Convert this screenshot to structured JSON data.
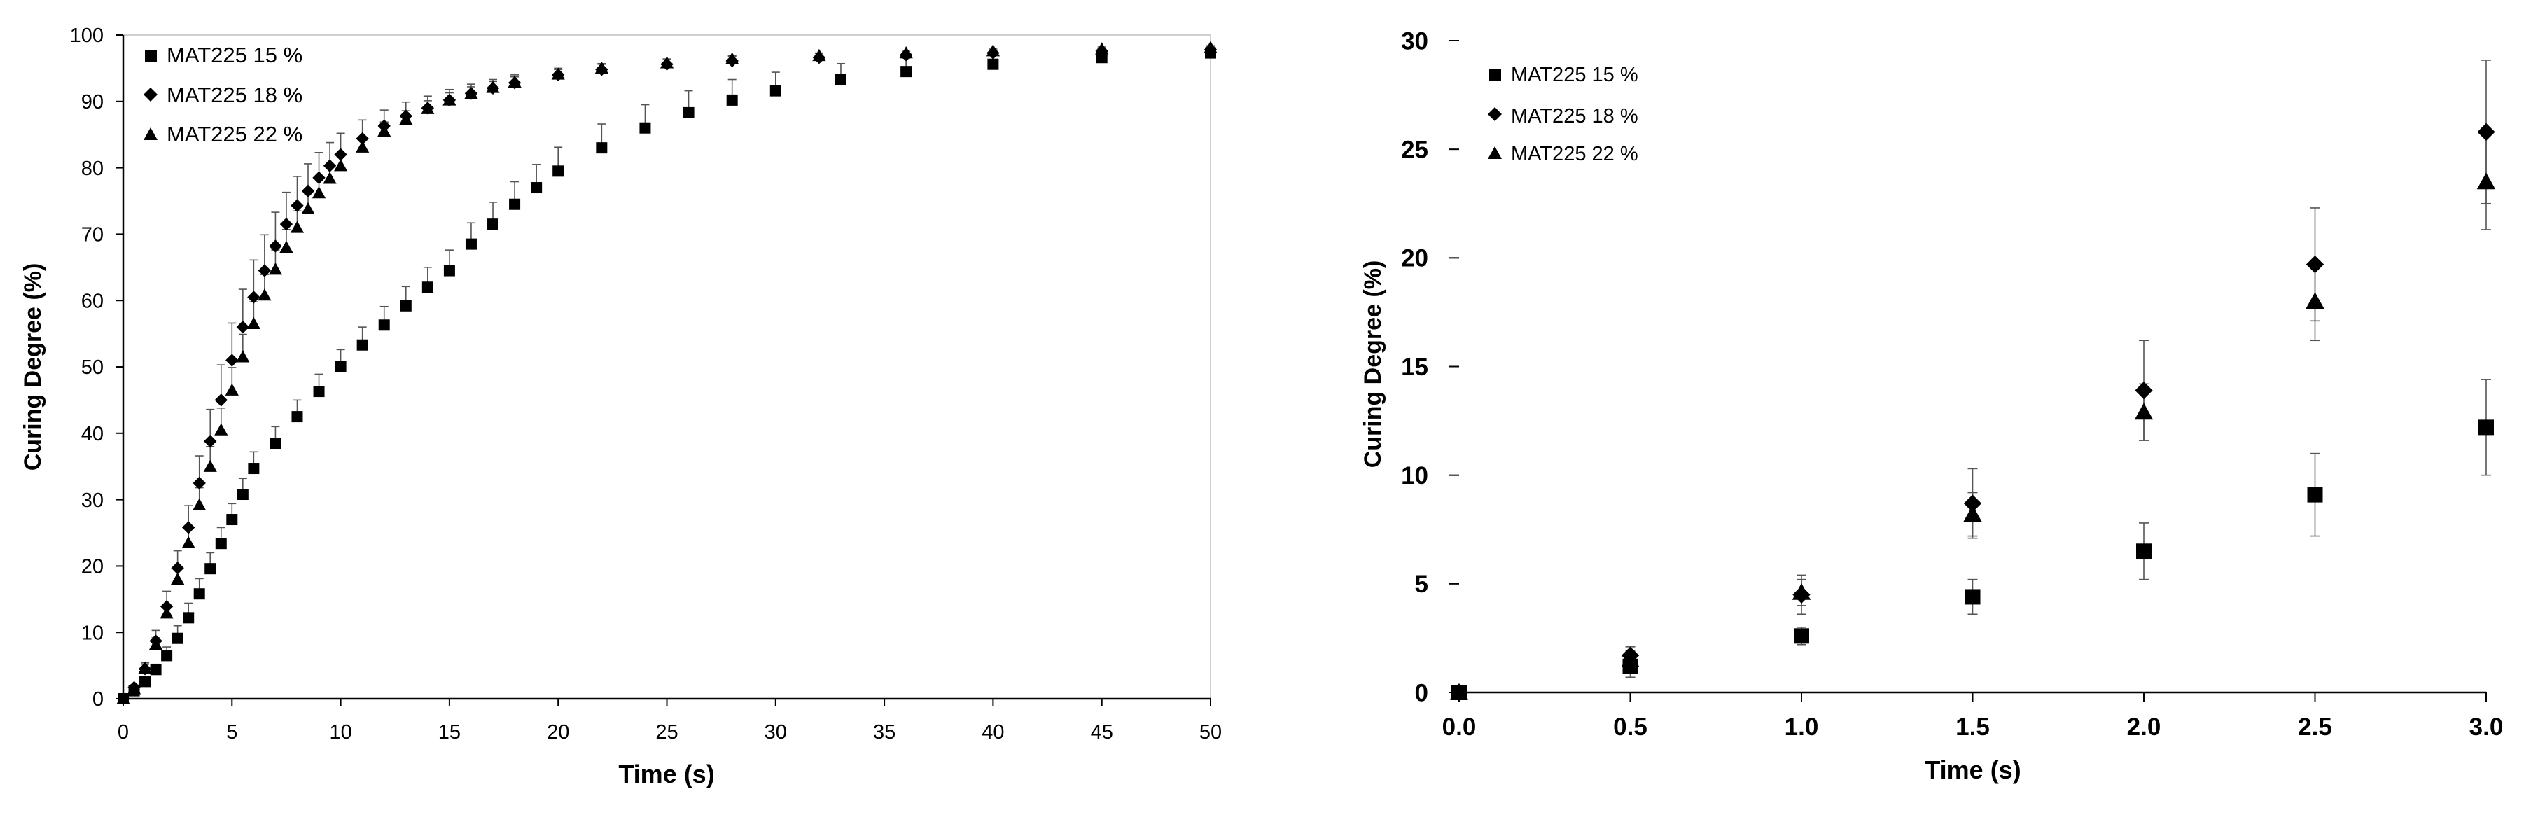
{
  "chart_data": [
    {
      "type": "scatter",
      "xlabel": "Time (s)",
      "ylabel": "Curing Degree (%)",
      "xlim": [
        0,
        50
      ],
      "ylim": [
        0,
        100
      ],
      "xticks": [
        "0",
        "5",
        "10",
        "15",
        "20",
        "25",
        "30",
        "35",
        "40",
        "45",
        "50"
      ],
      "yticks": [
        "0",
        "10",
        "20",
        "30",
        "40",
        "50",
        "60",
        "70",
        "80",
        "90",
        "100"
      ],
      "legend_position": "top-left",
      "grid": false,
      "error_bars": true,
      "series": [
        {
          "name": "MAT225 15 %",
          "marker": "square",
          "x": [
            0,
            0.5,
            1,
            1.5,
            2,
            2.5,
            3,
            3.5,
            4,
            4.5,
            5,
            5.5,
            6,
            7,
            8,
            9,
            10,
            11,
            12,
            13,
            14,
            15,
            16,
            17,
            18,
            19,
            20,
            22,
            24,
            26,
            28,
            30,
            33,
            36,
            40,
            45,
            50
          ],
          "y": [
            0,
            1.2,
            2.6,
            4.4,
            6.5,
            9.1,
            12.2,
            15.8,
            19.6,
            23.4,
            27,
            30.8,
            34.7,
            38.5,
            42.5,
            46.3,
            50,
            53.3,
            56.3,
            59.2,
            62,
            64.5,
            68.5,
            71.5,
            74.5,
            77,
            79.5,
            83,
            86,
            88.3,
            90.2,
            91.6,
            93.3,
            94.5,
            95.6,
            96.6,
            97.3
          ],
          "error": [
            0,
            0.5,
            0.4,
            0.8,
            1.3,
            1.9,
            2.2,
            2.3,
            2.4,
            2.4,
            2.4,
            2.4,
            2.5,
            2.5,
            2.5,
            2.6,
            2.6,
            2.7,
            2.8,
            2.9,
            3,
            3.1,
            3.2,
            3.3,
            3.4,
            3.5,
            3.6,
            3.6,
            3.5,
            3.3,
            3.1,
            2.8,
            2.4,
            2,
            1.6,
            1.2,
            0.9
          ]
        },
        {
          "name": "MAT225 18 %",
          "marker": "diamond",
          "x": [
            0,
            0.5,
            1,
            1.5,
            2,
            2.5,
            3,
            3.5,
            4,
            4.5,
            5,
            5.5,
            6,
            6.5,
            7,
            7.5,
            8,
            8.5,
            9,
            9.5,
            10,
            11,
            12,
            13,
            14,
            15,
            16,
            17,
            18,
            20,
            22,
            25,
            28,
            32,
            36,
            40,
            45,
            50
          ],
          "y": [
            0,
            1.7,
            4.5,
            8.7,
            13.9,
            19.7,
            25.8,
            32.5,
            38.8,
            45,
            51,
            56,
            60.5,
            64.5,
            68.2,
            71.5,
            74.3,
            76.5,
            78.5,
            80.3,
            82,
            84.4,
            86.3,
            87.8,
            89,
            90.2,
            91.2,
            92,
            92.8,
            94,
            94.8,
            95.6,
            96.1,
            96.6,
            97,
            97.3,
            97.6,
            97.8
          ],
          "error": [
            0,
            0.4,
            0.9,
            1.6,
            2.3,
            2.6,
            3.3,
            4.1,
            4.8,
            5.3,
            5.6,
            5.7,
            5.6,
            5.4,
            5.1,
            4.8,
            4.4,
            4.1,
            3.8,
            3.5,
            3.2,
            2.8,
            2.4,
            2.1,
            1.8,
            1.6,
            1.4,
            1.3,
            1.2,
            1,
            0.9,
            0.8,
            0.7,
            0.6,
            0.5,
            0.5,
            0.4,
            0.4
          ]
        },
        {
          "name": "MAT225 22 %",
          "marker": "triangle",
          "x": [
            0,
            0.5,
            1,
            1.5,
            2,
            2.5,
            3,
            3.5,
            4,
            4.5,
            5,
            5.5,
            6,
            6.5,
            7,
            7.5,
            8,
            8.5,
            9,
            9.5,
            10,
            11,
            12,
            13,
            14,
            15,
            16,
            17,
            18,
            20,
            22,
            25,
            28,
            32,
            36,
            40,
            45,
            50
          ],
          "y": [
            0,
            1.5,
            4.6,
            8.2,
            12.9,
            18,
            23.5,
            29.2,
            35,
            40.5,
            46.5,
            51.5,
            56.5,
            60.8,
            64.7,
            68,
            71,
            73.8,
            76.2,
            78.4,
            80.3,
            83.1,
            85.5,
            87.3,
            88.9,
            90.2,
            91.2,
            92.1,
            92.9,
            94.1,
            95,
            95.8,
            96.4,
            96.9,
            97.3,
            97.6,
            97.9,
            98.1
          ],
          "error": [
            0,
            0.4,
            0.6,
            1,
            1.3,
            1.8,
            2.2,
            2.6,
            3,
            3.3,
            3.4,
            3.4,
            3.3,
            3.1,
            2.9,
            2.7,
            2.5,
            2.3,
            2.1,
            1.9,
            1.8,
            1.6,
            1.4,
            1.3,
            1.2,
            1.1,
            1,
            0.9,
            0.8,
            0.7,
            0.6,
            0.5,
            0.5,
            0.4,
            0.4,
            0.4,
            0.3,
            0.3
          ]
        }
      ]
    },
    {
      "type": "scatter",
      "xlabel": "Time (s)",
      "ylabel": "Curing Degree (%)",
      "xlim": [
        0,
        3
      ],
      "ylim": [
        0,
        30
      ],
      "xticks": [
        "0.0",
        "0.5",
        "1.0",
        "1.5",
        "2.0",
        "2.5",
        "3.0"
      ],
      "yticks": [
        "0",
        "5",
        "10",
        "15",
        "20",
        "25",
        "30"
      ],
      "legend_position": "top-left",
      "grid": false,
      "error_bars": true,
      "series": [
        {
          "name": "MAT225 15 %",
          "marker": "square",
          "x": [
            0,
            0.5,
            1.0,
            1.5,
            2.0,
            2.5,
            3.0
          ],
          "y": [
            0,
            1.2,
            2.6,
            4.4,
            6.5,
            9.1,
            12.2
          ],
          "error": [
            0,
            0.5,
            0.4,
            0.8,
            1.3,
            1.9,
            2.2
          ]
        },
        {
          "name": "MAT225 18 %",
          "marker": "diamond",
          "x": [
            0,
            0.5,
            1.0,
            1.5,
            2.0,
            2.5,
            3.0
          ],
          "y": [
            0,
            1.7,
            4.5,
            8.7,
            13.9,
            19.7,
            25.8
          ],
          "error": [
            0,
            0.4,
            0.9,
            1.6,
            2.3,
            2.6,
            3.3
          ]
        },
        {
          "name": "MAT225 22 %",
          "marker": "triangle",
          "x": [
            0,
            0.5,
            1.0,
            1.5,
            2.0,
            2.5,
            3.0
          ],
          "y": [
            0,
            1.5,
            4.6,
            8.2,
            12.9,
            18.0,
            23.5
          ],
          "error": [
            0,
            0.4,
            0.6,
            1.0,
            1.3,
            1.8,
            2.2
          ]
        }
      ]
    }
  ]
}
